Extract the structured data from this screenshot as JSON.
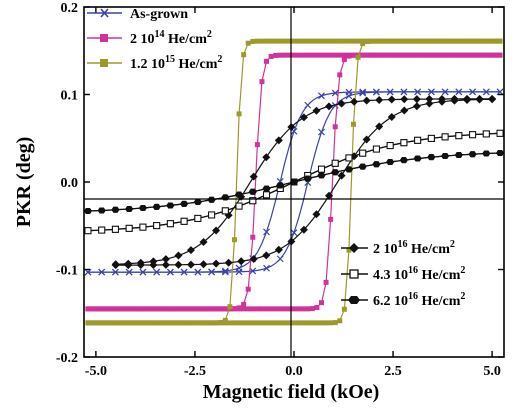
{
  "chart_data": {
    "type": "line",
    "xlabel": "Magnetic field (kOe)",
    "ylabel": "PKR (deg)",
    "xlim": [
      -5.3,
      5.3
    ],
    "ylim": [
      -0.2,
      0.2
    ],
    "x_ticks": [
      "-5.0",
      "-2.5",
      "0.0",
      "2.5",
      "5.0"
    ],
    "y_ticks": [
      "-0.2",
      "-0.1",
      "0.0",
      "0.1",
      "0.2"
    ],
    "x_tick_values": [
      -5.0,
      -2.5,
      0.0,
      2.5,
      5.0
    ],
    "y_tick_values": [
      -0.2,
      -0.1,
      0.0,
      0.1,
      0.2
    ],
    "legend_top": [
      "As-grown",
      "2 10^14 He/cm^2",
      "1.2 10^15 He/cm^2"
    ],
    "legend_bottom": [
      "2 10^16 He/cm^2",
      "4.3 10^16 He/cm^2",
      "6.2 10^16 He/cm^2"
    ],
    "series": [
      {
        "name": "As-grown",
        "marker": "x",
        "color": "#3a44a8",
        "shape": "tanh",
        "amp": 0.103,
        "width": 0.55,
        "coercive": 0.35,
        "xrange": [
          -5.2,
          5.2
        ]
      },
      {
        "name": "2 10^14 He/cm^2",
        "marker": "square",
        "color": "#d0339a",
        "shape": "sharp",
        "amp": 0.145,
        "width": 0.15,
        "coercive": 0.97,
        "xrange": [
          -5.2,
          5.2
        ]
      },
      {
        "name": "1.2 10^15 He/cm^2",
        "marker": "square",
        "color": "#9e9a2a",
        "shape": "sharp",
        "amp": 0.161,
        "width": 0.12,
        "coercive": 1.45,
        "xrange": [
          -5.2,
          5.2
        ]
      },
      {
        "name": "2 10^16 He/cm^2",
        "marker": "diamond",
        "color": "#111111",
        "shape": "tanh",
        "amp": 0.095,
        "width": 1.3,
        "coercive": 1.1,
        "xrange": [
          -4.5,
          5.0
        ]
      },
      {
        "name": "4.3 10^16 He/cm^2",
        "marker": "open-square",
        "color": "#111111",
        "shape": "linear",
        "amp": 0.058,
        "width": 4.3,
        "coercive": 0.0,
        "xrange": [
          -5.2,
          5.2
        ]
      },
      {
        "name": "6.2 10^16 He/cm^2",
        "marker": "hexagon",
        "color": "#111111",
        "shape": "linear",
        "amp": 0.036,
        "width": 5.2,
        "coercive": 0.0,
        "xrange": [
          -5.2,
          5.2
        ]
      }
    ]
  }
}
